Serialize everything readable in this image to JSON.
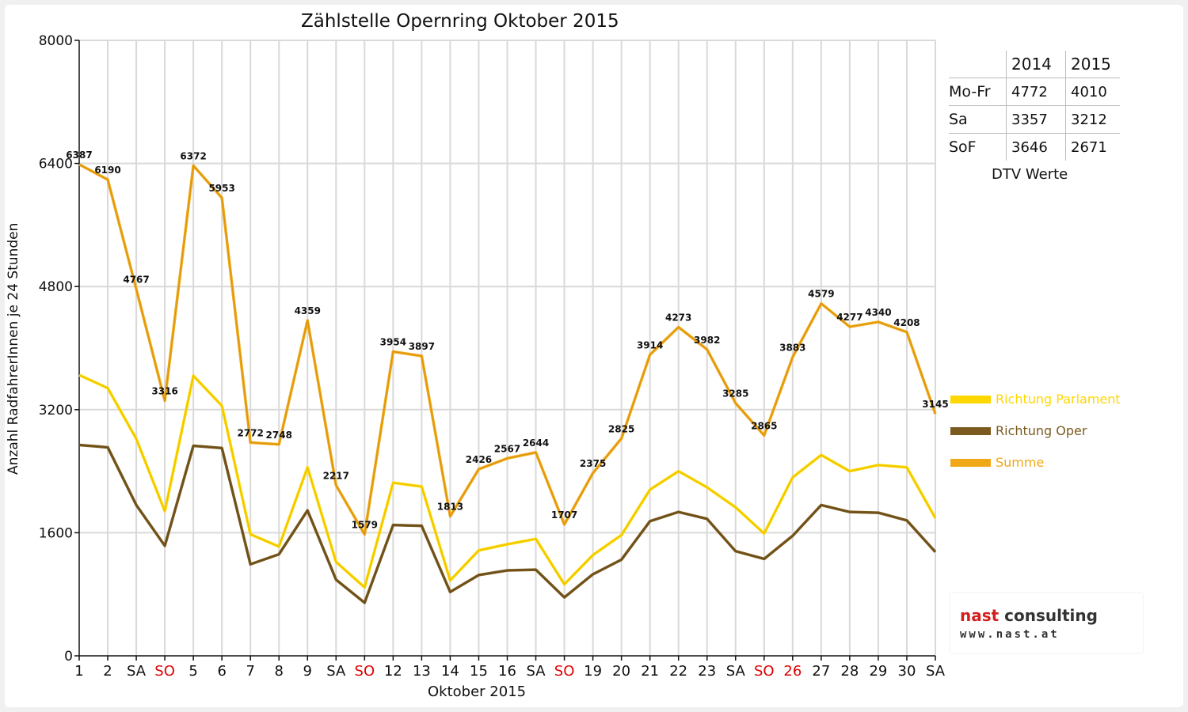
{
  "chart_data": {
    "type": "line",
    "title": "Zählstelle Opernring Oktober 2015",
    "xlabel": "Oktober 2015",
    "ylabel": "Anzahl RadfahrerInnen je 24 Stunden",
    "ylim": [
      0,
      8000
    ],
    "yticks": [
      0,
      1600,
      3200,
      4800,
      6400,
      8000
    ],
    "grid": true,
    "legend_position": "right",
    "categories": [
      "1",
      "2",
      "SA",
      "SO",
      "5",
      "6",
      "7",
      "8",
      "9",
      "SA",
      "SO",
      "12",
      "13",
      "14",
      "15",
      "16",
      "SA",
      "SO",
      "19",
      "20",
      "21",
      "22",
      "23",
      "SA",
      "SO",
      "26",
      "27",
      "28",
      "29",
      "30",
      "SA"
    ],
    "red_categories": [
      3,
      10,
      17,
      24,
      25
    ],
    "series": [
      {
        "name": "Richtung Parlament",
        "color": "#ffd700",
        "values": [
          3650,
          3480,
          2820,
          1880,
          3640,
          3250,
          1580,
          1420,
          2450,
          1220,
          890,
          2250,
          2200,
          980,
          1370,
          1450,
          1520,
          930,
          1310,
          1570,
          2160,
          2400,
          2190,
          1930,
          1590,
          2320,
          2610,
          2400,
          2480,
          2450,
          1790
        ]
      },
      {
        "name": "Richtung Oper",
        "color": "#7a5a1e",
        "values": [
          2740,
          2710,
          1960,
          1430,
          2730,
          2700,
          1190,
          1320,
          1890,
          990,
          690,
          1700,
          1690,
          830,
          1050,
          1110,
          1120,
          760,
          1060,
          1250,
          1750,
          1870,
          1780,
          1360,
          1260,
          1560,
          1960,
          1870,
          1860,
          1760,
          1350
        ]
      },
      {
        "name": "Summe",
        "color": "#f0a818",
        "values": [
          6387,
          6190,
          4767,
          3316,
          6372,
          5953,
          2772,
          2748,
          4359,
          2217,
          1579,
          3954,
          3897,
          1813,
          2426,
          2567,
          2644,
          1707,
          2375,
          2825,
          3914,
          4273,
          3982,
          3285,
          2865,
          3883,
          4579,
          4277,
          4340,
          4208,
          3145
        ]
      }
    ],
    "data_labels_series": "Summe"
  },
  "dtv_table": {
    "headers": [
      "",
      "2014",
      "2015"
    ],
    "rows": [
      {
        "label": "Mo-Fr",
        "y2014": "4772",
        "y2015": "4010"
      },
      {
        "label": "Sa",
        "y2014": "3357",
        "y2015": "3212"
      },
      {
        "label": "SoF",
        "y2014": "3646",
        "y2015": "2671"
      }
    ],
    "caption": "DTV Werte"
  },
  "logo": {
    "brand_a": "nast",
    "brand_b": " consulting",
    "url": "www.nast.at"
  }
}
